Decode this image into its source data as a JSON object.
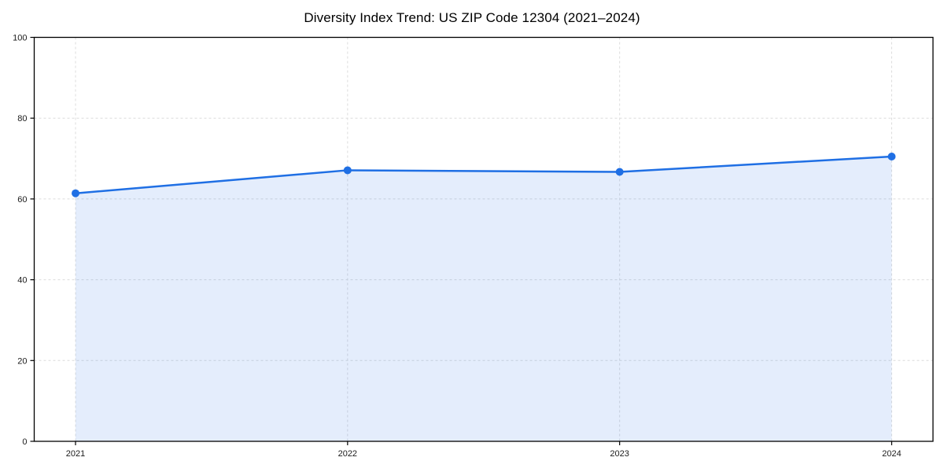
{
  "chart_data": {
    "type": "area",
    "title": "Diversity Index Trend: US ZIP Code 12304 (2021–2024)",
    "categories": [
      "2021",
      "2022",
      "2023",
      "2024"
    ],
    "series": [
      {
        "name": "Diversity Index",
        "values": [
          61.4,
          67.1,
          66.7,
          70.5
        ]
      }
    ],
    "xlabel": "",
    "ylabel": "",
    "ylim": [
      0,
      100
    ],
    "yticks": [
      0,
      20,
      40,
      60,
      80,
      100
    ],
    "grid": {
      "style": "dashed",
      "axes": "both"
    },
    "legend_position": "none",
    "colors": {
      "line": "#1f6fe4",
      "marker": "#1f6fe4",
      "fill": "#1f6fe4",
      "fill_opacity": 0.12,
      "grid": "#dcdcdc",
      "axis": "#000000",
      "tick_text": "#1a1a1a",
      "background": "#ffffff"
    }
  }
}
